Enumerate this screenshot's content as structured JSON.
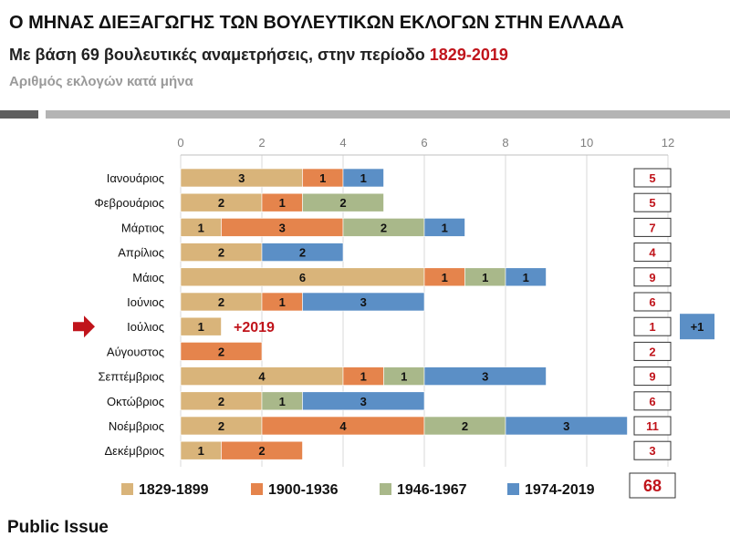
{
  "header": {
    "title": "Ο ΜΗΝΑΣ ΔΙΕΞΑΓΩΓΗΣ ΤΩΝ ΒΟΥΛΕΥΤΙΚΩΝ ΕΚΛΟΓΩΝ ΣΤΗΝ ΕΛΛΑΔΑ",
    "subtitle_text": "Με βάση 69 βουλευτικές αναμετρήσεις, στην περίοδο ",
    "subtitle_period": "1829-2019",
    "caption": "Αριθμός εκλογών κατά μήνα"
  },
  "footer": {
    "source": "Public Issue"
  },
  "colors": {
    "1829-1899": "#d9b47a",
    "1900-1936": "#e5844c",
    "1946-1967": "#a9b88a",
    "1974-2019": "#5b8fc6",
    "accent_red": "#c0141b"
  },
  "chart_data": {
    "type": "bar",
    "orientation": "horizontal",
    "stacked": true,
    "categories": [
      "Ιανουάριος",
      "Φεβρουάριος",
      "Μάρτιος",
      "Απρίλιος",
      "Μάιος",
      "Ιούνιος",
      "Ιούλιος",
      "Αύγουστος",
      "Σεπτέμβριος",
      "Οκτώβριος",
      "Νοέμβριος",
      "Δεκέμβριος"
    ],
    "series": [
      {
        "name": "1829-1899",
        "values": [
          3,
          2,
          1,
          2,
          6,
          2,
          1,
          0,
          4,
          2,
          2,
          1
        ]
      },
      {
        "name": "1900-1936",
        "values": [
          1,
          1,
          3,
          0,
          1,
          1,
          0,
          2,
          1,
          0,
          4,
          2
        ]
      },
      {
        "name": "1946-1967",
        "values": [
          0,
          2,
          2,
          0,
          1,
          0,
          0,
          0,
          1,
          1,
          2,
          0
        ]
      },
      {
        "name": "1974-2019",
        "values": [
          1,
          0,
          1,
          2,
          1,
          3,
          0,
          0,
          3,
          3,
          3,
          0
        ]
      }
    ],
    "totals": [
      5,
      5,
      7,
      4,
      9,
      6,
      1,
      2,
      9,
      6,
      11,
      3
    ],
    "grand_total": "68",
    "xlim": [
      0,
      12
    ],
    "xticks": [
      0,
      2,
      4,
      6,
      8,
      10,
      12
    ],
    "legend_position": "bottom",
    "annotations": [
      {
        "category": "Ιούλιος",
        "text": "+2019",
        "pointer": "arrow"
      },
      {
        "category": "Ιούλιος",
        "text": "+1",
        "badge": true
      }
    ]
  }
}
